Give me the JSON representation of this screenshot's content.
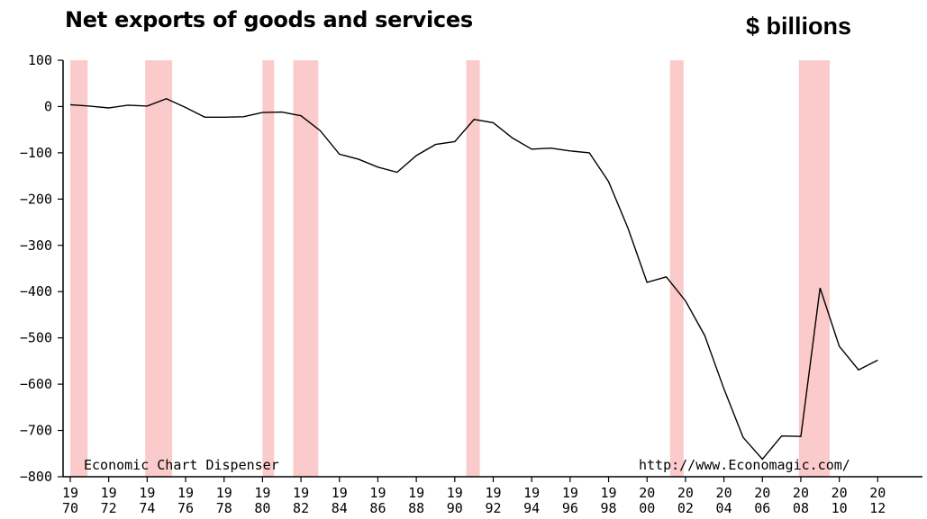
{
  "chart_data": {
    "type": "line",
    "title": "Net exports of goods and services",
    "unit_label": "$ billions",
    "xlabel": "",
    "ylabel": "",
    "ylim": [
      -800,
      100
    ],
    "xlim": [
      1970,
      2014
    ],
    "yticks": [
      100,
      0,
      -100,
      -200,
      -300,
      -400,
      -500,
      -600,
      -700,
      -800
    ],
    "xticks": [
      {
        "top": "19",
        "bottom": "70"
      },
      {
        "top": "19",
        "bottom": "72"
      },
      {
        "top": "19",
        "bottom": "74"
      },
      {
        "top": "19",
        "bottom": "76"
      },
      {
        "top": "19",
        "bottom": "78"
      },
      {
        "top": "19",
        "bottom": "80"
      },
      {
        "top": "19",
        "bottom": "82"
      },
      {
        "top": "19",
        "bottom": "84"
      },
      {
        "top": "19",
        "bottom": "86"
      },
      {
        "top": "19",
        "bottom": "88"
      },
      {
        "top": "19",
        "bottom": "90"
      },
      {
        "top": "19",
        "bottom": "92"
      },
      {
        "top": "19",
        "bottom": "94"
      },
      {
        "top": "19",
        "bottom": "96"
      },
      {
        "top": "19",
        "bottom": "98"
      },
      {
        "top": "20",
        "bottom": "00"
      },
      {
        "top": "20",
        "bottom": "02"
      },
      {
        "top": "20",
        "bottom": "04"
      },
      {
        "top": "20",
        "bottom": "06"
      },
      {
        "top": "20",
        "bottom": "08"
      },
      {
        "top": "20",
        "bottom": "10"
      },
      {
        "top": "20",
        "bottom": "12"
      }
    ],
    "recessions": [
      [
        1970.0,
        1970.9
      ],
      [
        1973.9,
        1975.3
      ],
      [
        1980.0,
        1980.6
      ],
      [
        1981.6,
        1982.9
      ],
      [
        1990.6,
        1991.3
      ],
      [
        2001.2,
        2001.9
      ],
      [
        2007.9,
        2009.5
      ]
    ],
    "series": [
      {
        "x": [
          1970,
          1971,
          1972,
          1973,
          1974,
          1975,
          1976,
          1977,
          1978,
          1979,
          1980,
          1981,
          1982,
          1983,
          1984,
          1985,
          1986,
          1987,
          1988,
          1989,
          1990,
          1991,
          1992,
          1993,
          1994,
          1995,
          1996,
          1997,
          1998,
          1999,
          2000,
          2001,
          2002,
          2003,
          2004,
          2005,
          2006,
          2007,
          2008,
          2009,
          2010,
          2011,
          2012
        ],
        "y": [
          4,
          1,
          -3,
          3,
          1,
          17,
          -2,
          -23,
          -23,
          -22,
          -13,
          -12,
          -20,
          -52,
          -103,
          -114,
          -131,
          -142,
          -106,
          -82,
          -76,
          -28,
          -35,
          -68,
          -92,
          -90,
          -96,
          -100,
          -162,
          -262,
          -380,
          -368,
          -420,
          -495,
          -610,
          -715,
          -762,
          -712,
          -713,
          -392,
          -518,
          -569,
          -548
        ]
      }
    ],
    "series_color": "#000000",
    "recession_color": "#fbcaca",
    "annotations": {
      "left": "Economic Chart Dispenser",
      "right": "http://www.Economagic.com/"
    }
  }
}
